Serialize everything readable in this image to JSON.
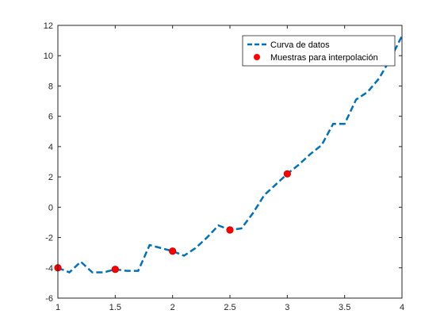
{
  "chart_data": {
    "type": "line",
    "xlim": [
      1,
      4
    ],
    "ylim": [
      -6,
      12
    ],
    "xticks": [
      1,
      1.5,
      2,
      2.5,
      3,
      3.5,
      4
    ],
    "yticks": [
      -6,
      -4,
      -2,
      0,
      2,
      4,
      6,
      8,
      10,
      12
    ],
    "xtick_labels": [
      "1",
      "1.5",
      "2",
      "2.5",
      "3",
      "3.5",
      "4"
    ],
    "ytick_labels": [
      "-6",
      "-4",
      "-2",
      "0",
      "2",
      "4",
      "6",
      "8",
      "10",
      "12"
    ],
    "grid": false,
    "legend_position": "top-right",
    "series": [
      {
        "name": "Curva de datos",
        "style": "dashed-line",
        "color": "#0072BD",
        "x": [
          1.0,
          1.1,
          1.2,
          1.3,
          1.4,
          1.5,
          1.6,
          1.7,
          1.8,
          1.9,
          2.0,
          2.1,
          2.2,
          2.3,
          2.4,
          2.5,
          2.6,
          2.7,
          2.8,
          2.9,
          3.0,
          3.1,
          3.2,
          3.3,
          3.4,
          3.5,
          3.6,
          3.7,
          3.8,
          3.9,
          4.0
        ],
        "y": [
          -4.0,
          -4.3,
          -3.6,
          -4.3,
          -4.3,
          -4.1,
          -4.2,
          -4.2,
          -2.5,
          -2.7,
          -2.9,
          -3.2,
          -2.7,
          -2.0,
          -1.2,
          -1.5,
          -1.4,
          -0.4,
          0.8,
          1.5,
          2.2,
          2.8,
          3.5,
          4.1,
          5.5,
          5.5,
          7.1,
          7.6,
          8.5,
          9.8,
          11.3
        ]
      },
      {
        "name": "Muestras para interpolación",
        "style": "markers",
        "color": "#FF0000",
        "x": [
          1.0,
          1.5,
          2.0,
          2.5,
          3.0
        ],
        "y": [
          -4.0,
          -4.1,
          -2.9,
          -1.5,
          2.2
        ]
      }
    ]
  }
}
